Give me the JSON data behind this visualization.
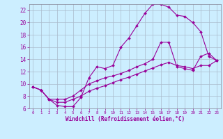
{
  "xlabel": "Windchill (Refroidissement éolien,°C)",
  "bg_color": "#cceeff",
  "line_color": "#990099",
  "grid_color": "#aabbcc",
  "xlim": [
    -0.5,
    23.5
  ],
  "ylim": [
    6,
    23
  ],
  "yticks": [
    6,
    8,
    10,
    12,
    14,
    16,
    18,
    20,
    22
  ],
  "xticks": [
    0,
    1,
    2,
    3,
    4,
    5,
    6,
    7,
    8,
    9,
    10,
    11,
    12,
    13,
    14,
    15,
    16,
    17,
    18,
    19,
    20,
    21,
    22,
    23
  ],
  "curve1_x": [
    0,
    1,
    2,
    3,
    4,
    5,
    6,
    7,
    8,
    9,
    10,
    11,
    12,
    13,
    14,
    15,
    16,
    17,
    18,
    19,
    20,
    21,
    22,
    23
  ],
  "curve1_y": [
    9.5,
    9.0,
    7.5,
    6.5,
    6.3,
    6.3,
    7.8,
    11.0,
    12.8,
    12.5,
    13.0,
    16.0,
    17.5,
    19.5,
    21.5,
    23.0,
    23.0,
    22.5,
    21.2,
    21.0,
    20.0,
    18.5,
    14.5,
    13.8
  ],
  "curve2_x": [
    0,
    1,
    2,
    3,
    4,
    5,
    6,
    7,
    8,
    9,
    10,
    11,
    12,
    13,
    14,
    15,
    16,
    17,
    18,
    19,
    20,
    21,
    22,
    23
  ],
  "curve2_y": [
    9.5,
    9.0,
    7.5,
    7.5,
    7.5,
    8.0,
    9.0,
    10.0,
    10.5,
    11.0,
    11.3,
    11.7,
    12.2,
    12.8,
    13.3,
    14.0,
    16.8,
    16.8,
    12.8,
    12.5,
    12.2,
    14.5,
    15.0,
    13.8
  ],
  "curve3_x": [
    0,
    1,
    2,
    3,
    4,
    5,
    6,
    7,
    8,
    9,
    10,
    11,
    12,
    13,
    14,
    15,
    16,
    17,
    18,
    19,
    20,
    21,
    22,
    23
  ],
  "curve3_y": [
    9.5,
    9.0,
    7.5,
    7.0,
    7.0,
    7.5,
    8.0,
    8.8,
    9.3,
    9.7,
    10.2,
    10.7,
    11.1,
    11.6,
    12.1,
    12.6,
    13.1,
    13.5,
    13.0,
    12.8,
    12.5,
    13.0,
    13.0,
    13.8
  ]
}
